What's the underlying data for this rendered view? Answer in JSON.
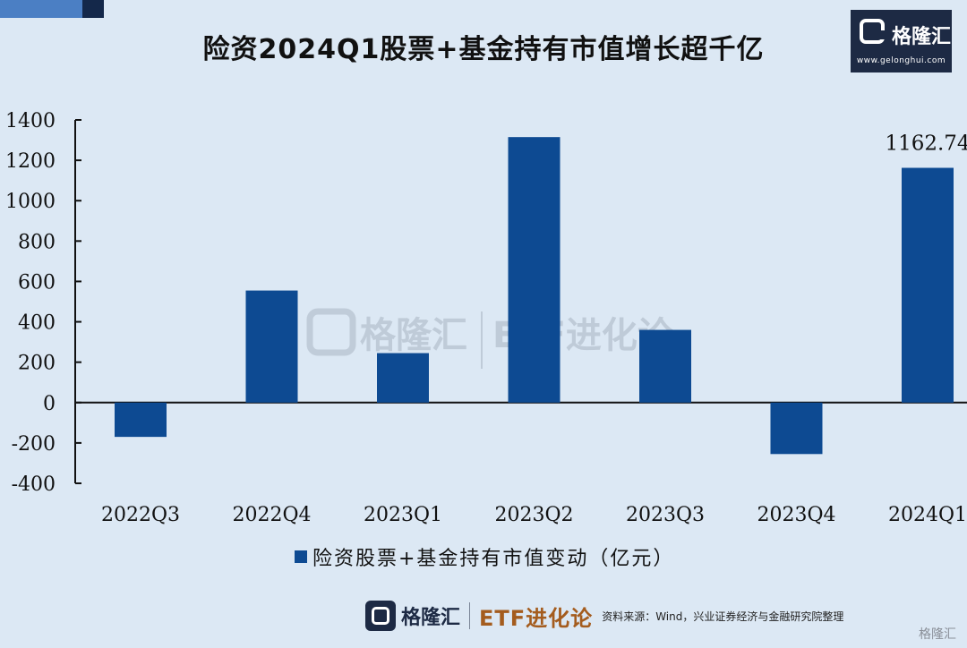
{
  "title": "险资2024Q1股票+基金持有市值增长超千亿",
  "logo": {
    "name": "格隆汇",
    "url": "www.gelonghui.com"
  },
  "watermark": {
    "brand": "格隆汇",
    "product": "ETF进化论"
  },
  "footer": {
    "brand": "格隆汇",
    "product": "ETF进化论",
    "source": "资料来源：Wind，兴业证券经济与金融研究院整理"
  },
  "corner_mark": "格隆汇",
  "colors": {
    "bar": "#0d4a92",
    "background": "#dce8f4"
  },
  "chart_data": {
    "type": "bar",
    "categories": [
      "2022Q3",
      "2022Q4",
      "2023Q1",
      "2023Q2",
      "2023Q3",
      "2023Q4",
      "2024Q1"
    ],
    "series": [
      {
        "name": "险资股票+基金持有市值变动（亿元）",
        "values": [
          -170,
          555,
          245,
          1315,
          360,
          -255,
          1162.74
        ]
      }
    ],
    "data_labels": [
      null,
      null,
      null,
      null,
      null,
      null,
      "1162.74"
    ],
    "yticks": [
      1400,
      1200,
      1000,
      800,
      600,
      400,
      200,
      0,
      -200,
      -400
    ],
    "ylim": [
      -400,
      1400
    ],
    "grid": false,
    "legend_position": "bottom"
  }
}
